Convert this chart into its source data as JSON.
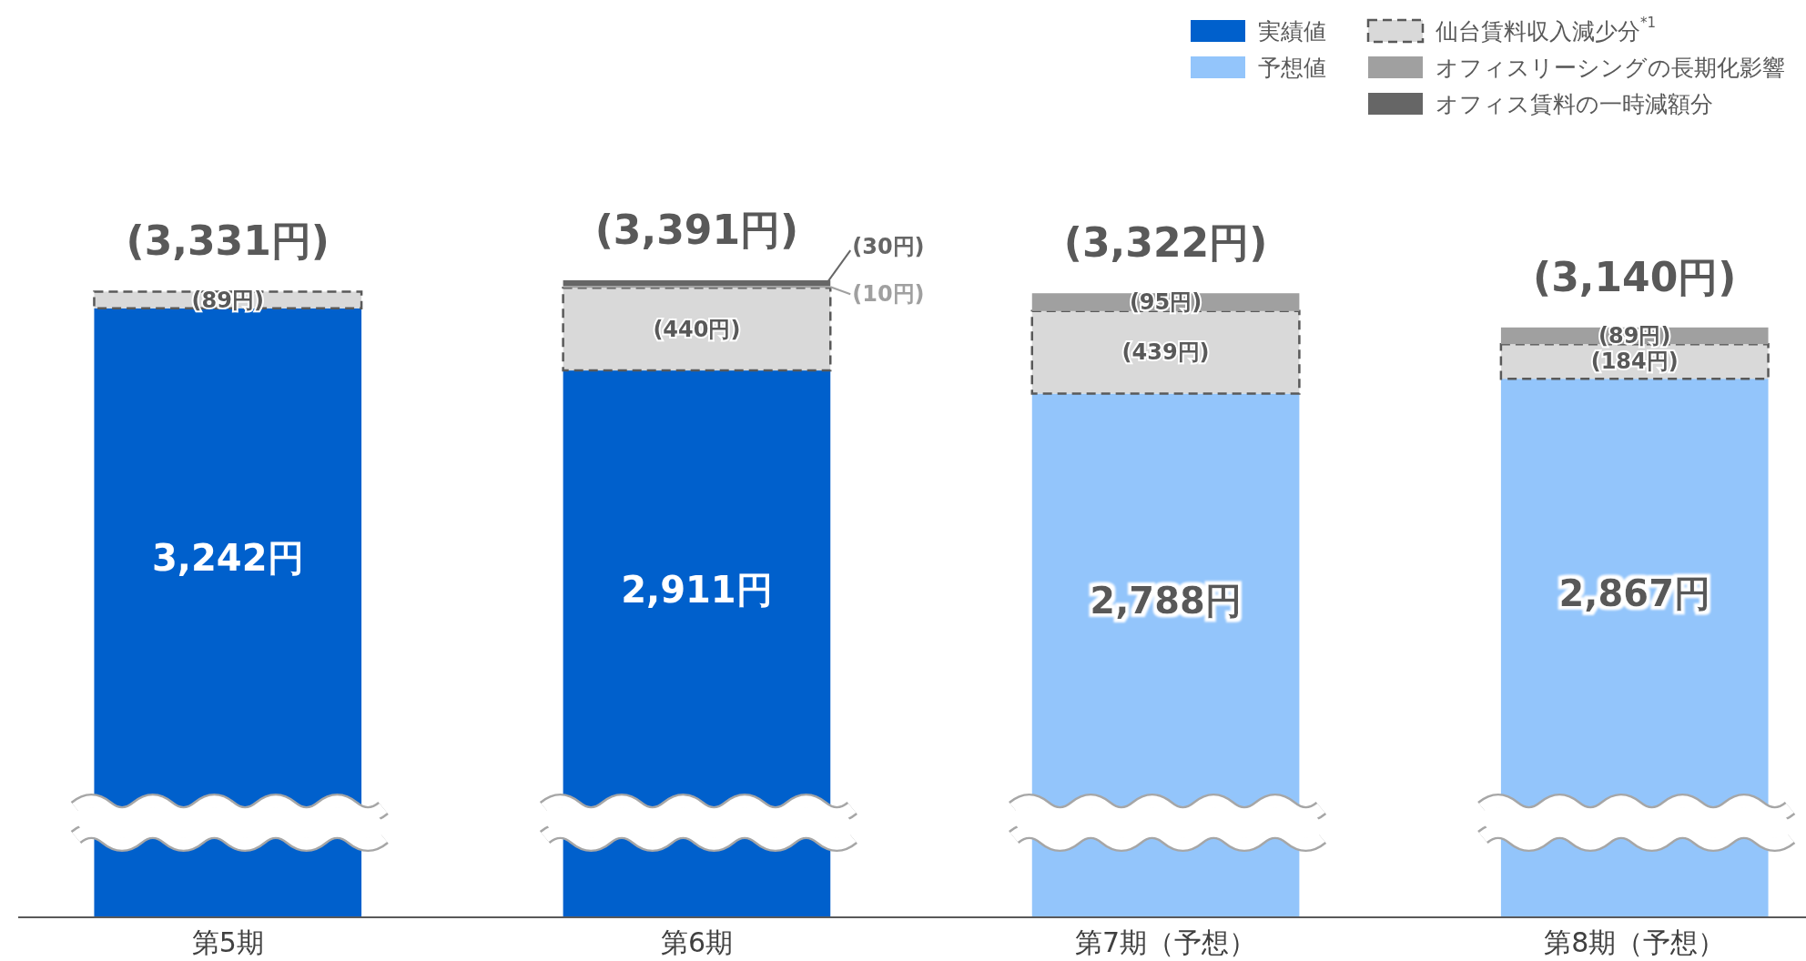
{
  "chart_data": {
    "type": "bar",
    "stacked": true,
    "categories": [
      "第5期",
      "第6期",
      "第7期（予想）",
      "第8期（予想）"
    ],
    "series": [
      {
        "name": "実績値",
        "color": "#0060cc",
        "values": [
          3242,
          2911,
          null,
          null
        ],
        "value_labels": [
          "3,242円",
          "2,911円",
          null,
          null
        ]
      },
      {
        "name": "予想値",
        "color": "#93c5fb",
        "values": [
          null,
          null,
          2788,
          2867
        ],
        "value_labels": [
          null,
          null,
          "2,788円",
          "2,867円"
        ]
      },
      {
        "name": "仙台賃料収入減少分$^{*1}$",
        "color": "#d9d9d9",
        "line_style": "dashed",
        "values": [
          89,
          440,
          439,
          184
        ],
        "value_labels": [
          "(89円)",
          "(440円)",
          "(439円)",
          "(184円)"
        ]
      },
      {
        "name": "オフィスリーシングの長期化影響",
        "color": "#a0a0a0",
        "values": [
          null,
          10,
          95,
          89
        ],
        "value_labels": [
          null,
          "(10円)",
          "(95円)",
          "(89円)"
        ]
      },
      {
        "name": "オフィス賃料の一時減額分",
        "color": "#666666",
        "values": [
          null,
          30,
          null,
          null
        ],
        "value_labels": [
          null,
          "(30円)",
          null,
          null
        ]
      }
    ],
    "totals": [
      "(3,331円)",
      "(3,391円)",
      "(3,322円)",
      "(3,140円)"
    ],
    "relative": false,
    "legend": "top right"
  }
}
